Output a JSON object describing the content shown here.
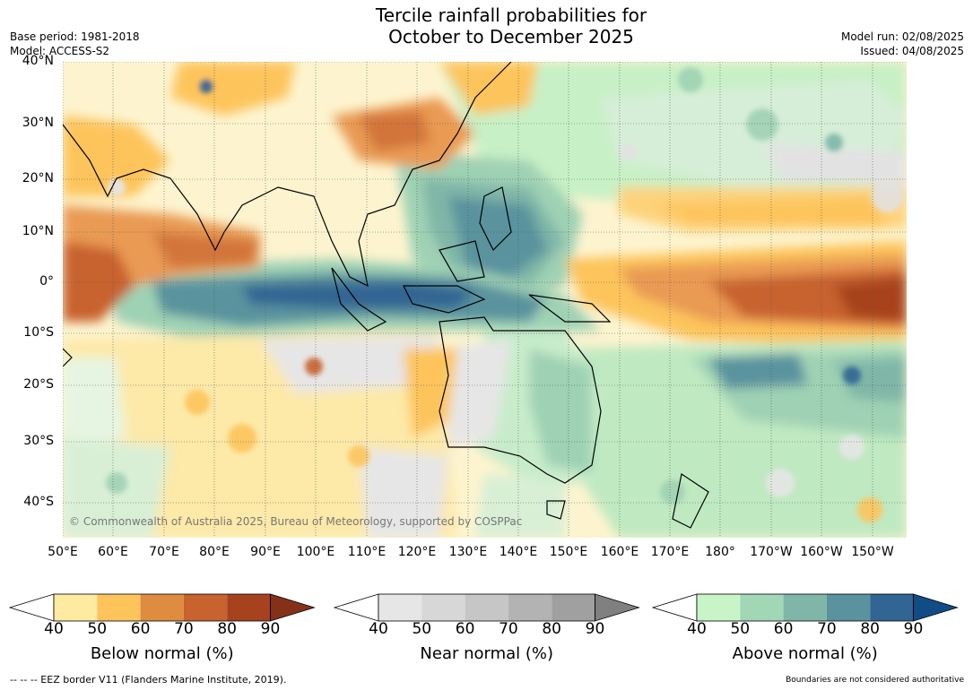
{
  "header": {
    "title_line1": "Tercile rainfall probabilities for",
    "title_line2": "October to December 2025",
    "base_period": "Base period: 1981-2018",
    "model": "Model: ACCESS-S2",
    "model_run": "Model run: 02/08/2025",
    "issued": "Issued: 04/08/2025"
  },
  "map": {
    "lat_labels": [
      "40°N",
      "30°N",
      "20°N",
      "10°N",
      "0°",
      "10°S",
      "20°S",
      "30°S",
      "40°S"
    ],
    "lon_labels": [
      "50°E",
      "60°E",
      "70°E",
      "80°E",
      "90°E",
      "100°E",
      "110°E",
      "120°E",
      "130°E",
      "140°E",
      "150°E",
      "160°E",
      "170°E",
      "180°",
      "170°W",
      "160°W",
      "150°W"
    ],
    "copyright": "© Commonwealth of Australia 2025, Bureau of Meteorology, supported by COSPPac"
  },
  "colorbars": [
    {
      "label": "Below normal (%)",
      "ticks": [
        "40",
        "50",
        "60",
        "70",
        "80",
        "90"
      ],
      "colors": [
        "#ffffff",
        "#feeaa0",
        "#fdc45c",
        "#de8c40",
        "#c8622e",
        "#a7421f",
        "#85311a"
      ]
    },
    {
      "label": "Near normal (%)",
      "ticks": [
        "40",
        "50",
        "60",
        "70",
        "80",
        "90"
      ],
      "colors": [
        "#ffffff",
        "#e6e6e6",
        "#d7d7d7",
        "#c6c6c6",
        "#b3b3b3",
        "#a0a0a0",
        "#808080"
      ]
    },
    {
      "label": "Above normal (%)",
      "ticks": [
        "40",
        "50",
        "60",
        "70",
        "80",
        "90"
      ],
      "colors": [
        "#ffffff",
        "#c8f5c8",
        "#a2d7b6",
        "#80b6a8",
        "#5a939e",
        "#316593",
        "#124c85"
      ]
    }
  ],
  "footer": {
    "eez": "--  --  -- EEZ border V11 (Flanders Marine Institute, 2019).",
    "boundaries": "Boundaries are not considered authoritative"
  }
}
